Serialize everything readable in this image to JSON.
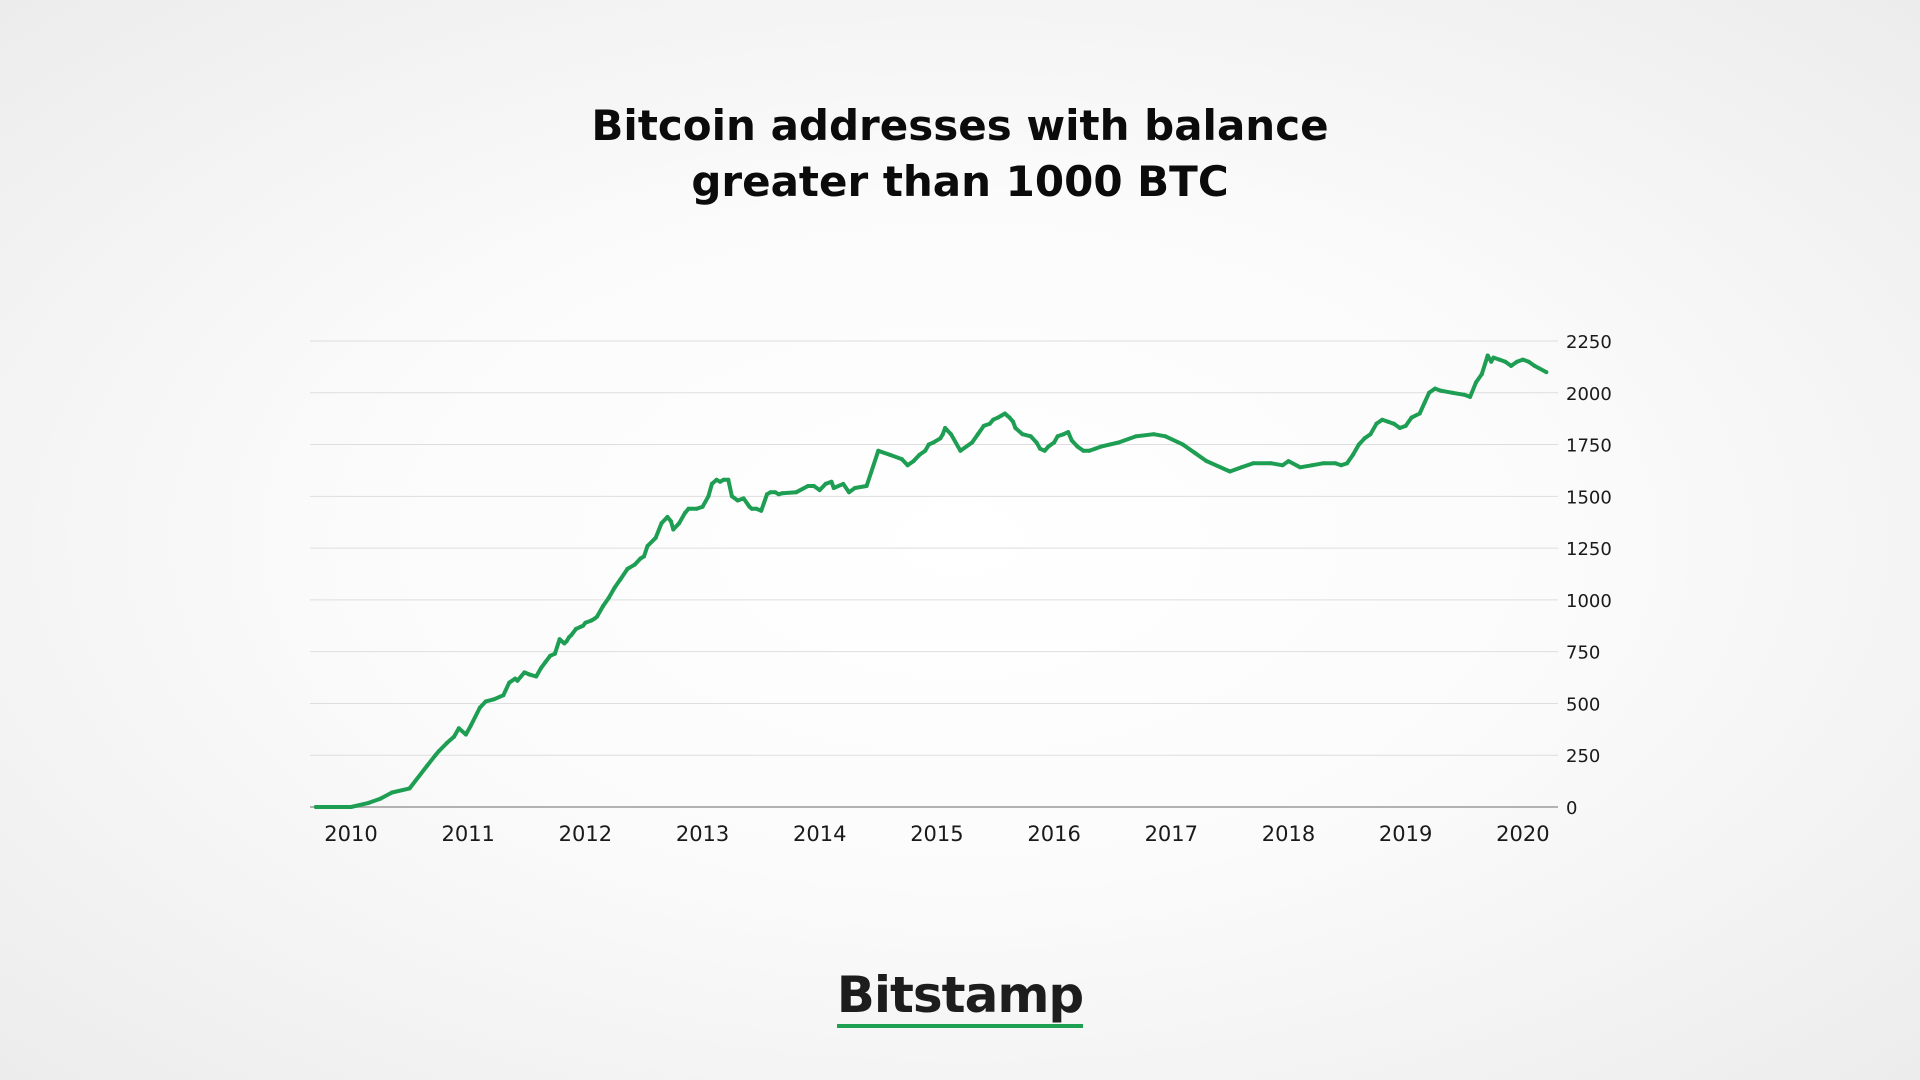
{
  "title_line1": "Bitcoin addresses with balance",
  "title_line2": "greater than 1000 BTC",
  "logo_text": "Bitstamp",
  "colors": {
    "line": "#1e9e53",
    "grid": "#dedede",
    "axis": "#9a9a9a",
    "logo_underline": "#1ea052"
  },
  "chart_data": {
    "type": "line",
    "title": "Bitcoin addresses with balance greater than 1000 BTC",
    "xlabel": "",
    "ylabel": "",
    "xlim": [
      2009.65,
      2020.3
    ],
    "ylim": [
      0,
      2250
    ],
    "grid": true,
    "legend": "none",
    "y_axis_position": "right",
    "x_ticks": [
      2010,
      2011,
      2012,
      2013,
      2014,
      2015,
      2016,
      2017,
      2018,
      2019,
      2020
    ],
    "x_tick_labels": [
      "2010",
      "2011",
      "2012",
      "2013",
      "2014",
      "2015",
      "2016",
      "2017",
      "2018",
      "2019",
      "2020"
    ],
    "y_ticks": [
      0,
      250,
      500,
      750,
      1000,
      1250,
      1500,
      1750,
      2000,
      2250
    ],
    "y_tick_labels": [
      "0",
      "250",
      "500",
      "750",
      "1000",
      "1250",
      "1500",
      "1750",
      "2000",
      "2250"
    ],
    "series": [
      {
        "x": [
          2009.7,
          2010.0,
          2010.15,
          2010.25,
          2010.35,
          2010.5,
          2010.65,
          2010.72,
          2010.75,
          2010.82,
          2010.88,
          2010.92,
          2010.98,
          2011.02,
          2011.1,
          2011.15,
          2011.22,
          2011.3,
          2011.35,
          2011.4,
          2011.42,
          2011.48,
          2011.52,
          2011.58,
          2011.62,
          2011.66,
          2011.7,
          2011.74,
          2011.78,
          2011.82,
          2011.84,
          2011.86,
          2011.88,
          2011.92,
          2011.96,
          2011.98,
          2012.0,
          2012.05,
          2012.08,
          2012.1,
          2012.15,
          2012.2,
          2012.25,
          2012.3,
          2012.36,
          2012.42,
          2012.47,
          2012.5,
          2012.53,
          2012.6,
          2012.65,
          2012.7,
          2012.73,
          2012.75,
          2012.8,
          2012.85,
          2012.88,
          2012.95,
          2013.0,
          2013.05,
          2013.08,
          2013.12,
          2013.15,
          2013.18,
          2013.22,
          2013.25,
          2013.3,
          2013.35,
          2013.4,
          2013.42,
          2013.46,
          2013.5,
          2013.55,
          2013.58,
          2013.62,
          2013.65,
          2013.68,
          2013.8,
          2013.9,
          2013.95,
          2014.0,
          2014.05,
          2014.1,
          2014.12,
          2014.2,
          2014.25,
          2014.3,
          2014.4,
          2014.5,
          2014.6,
          2014.7,
          2014.75,
          2014.8,
          2014.85,
          2014.9,
          2014.93,
          2014.97,
          2015.03,
          2015.05,
          2015.07,
          2015.12,
          2015.2,
          2015.3,
          2015.35,
          2015.4,
          2015.45,
          2015.48,
          2015.52,
          2015.55,
          2015.58,
          2015.6,
          2015.62,
          2015.65,
          2015.67,
          2015.73,
          2015.8,
          2015.85,
          2015.88,
          2015.92,
          2015.95,
          2016.0,
          2016.03,
          2016.08,
          2016.12,
          2016.15,
          2016.2,
          2016.25,
          2016.3,
          2016.35,
          2016.4,
          2016.55,
          2016.7,
          2016.85,
          2016.95,
          2017.1,
          2017.2,
          2017.3,
          2017.5,
          2017.6,
          2017.7,
          2017.85,
          2017.95,
          2018.0,
          2018.1,
          2018.2,
          2018.3,
          2018.4,
          2018.45,
          2018.5,
          2018.55,
          2018.6,
          2018.65,
          2018.7,
          2018.75,
          2018.8,
          2018.85,
          2018.9,
          2018.95,
          2019.0,
          2019.05,
          2019.12,
          2019.16,
          2019.2,
          2019.25,
          2019.3,
          2019.4,
          2019.5,
          2019.55,
          2019.6,
          2019.65,
          2019.7,
          2019.73,
          2019.75,
          2019.8,
          2019.85,
          2019.9,
          2019.95,
          2020.0,
          2020.05,
          2020.1,
          2020.2
        ],
        "y": [
          0,
          0,
          20,
          40,
          70,
          90,
          200,
          250,
          270,
          310,
          340,
          380,
          350,
          390,
          480,
          510,
          520,
          540,
          600,
          620,
          610,
          650,
          640,
          630,
          670,
          700,
          730,
          740,
          810,
          790,
          800,
          820,
          830,
          860,
          870,
          875,
          890,
          900,
          910,
          920,
          970,
          1010,
          1060,
          1100,
          1150,
          1170,
          1200,
          1210,
          1260,
          1300,
          1370,
          1400,
          1380,
          1340,
          1370,
          1420,
          1440,
          1440,
          1450,
          1500,
          1560,
          1580,
          1570,
          1580,
          1580,
          1500,
          1480,
          1490,
          1450,
          1440,
          1440,
          1430,
          1510,
          1520,
          1520,
          1510,
          1515,
          1520,
          1550,
          1550,
          1530,
          1560,
          1570,
          1540,
          1560,
          1520,
          1540,
          1550,
          1720,
          1700,
          1680,
          1650,
          1670,
          1700,
          1720,
          1750,
          1760,
          1780,
          1800,
          1830,
          1800,
          1720,
          1760,
          1800,
          1840,
          1850,
          1870,
          1880,
          1890,
          1900,
          1890,
          1880,
          1860,
          1830,
          1800,
          1790,
          1760,
          1730,
          1720,
          1740,
          1760,
          1790,
          1800,
          1810,
          1770,
          1740,
          1720,
          1720,
          1730,
          1740,
          1760,
          1790,
          1800,
          1790,
          1750,
          1710,
          1670,
          1620,
          1640,
          1660,
          1660,
          1650,
          1670,
          1640,
          1650,
          1660,
          1660,
          1650,
          1660,
          1700,
          1750,
          1780,
          1800,
          1850,
          1870,
          1860,
          1850,
          1830,
          1840,
          1880,
          1900,
          1950,
          2000,
          2020,
          2010,
          2000,
          1990,
          1980,
          2050,
          2090,
          2180,
          2150,
          2170,
          2160,
          2150,
          2130,
          2150,
          2160,
          2150,
          2130,
          2100
        ]
      }
    ]
  }
}
